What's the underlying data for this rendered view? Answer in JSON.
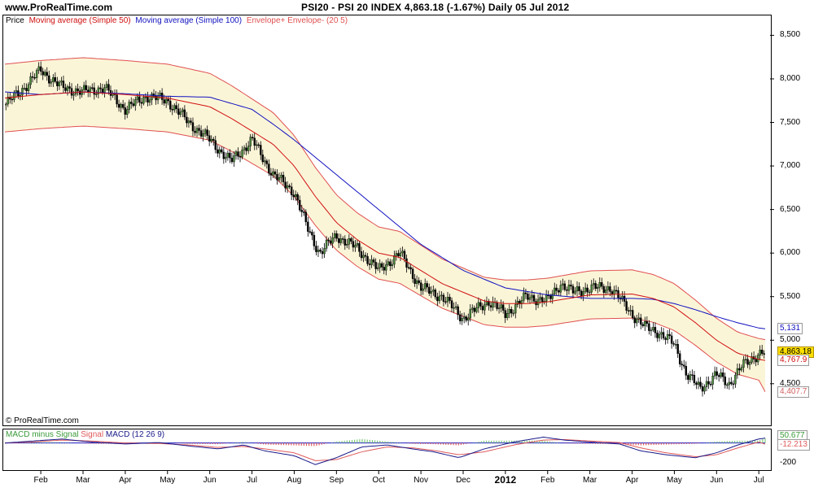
{
  "header": {
    "site": "www.ProRealTime.com",
    "title": "PSI20 - PSI 20 INDEX    4,863.18 (-1.67%)    Daily  05 Jul 2012"
  },
  "legend": {
    "price": "Price",
    "ma50": "Moving average (Simple 50)",
    "ma100": "Moving average (Simple 100)",
    "envelope": "Envelope+ Envelope- (20 5)"
  },
  "copyright": "© ProRealTime.com",
  "indicator": {
    "legend_macd_minus": "MACD minus Signal",
    "legend_signal": "Signal",
    "legend_macd": "MACD (12 26 9)",
    "ticks": [
      {
        "label": "-200",
        "value": -200
      }
    ],
    "value_tags": [
      "50.677",
      "-12.213"
    ]
  },
  "colors": {
    "price_up": "#4a8a3a",
    "price_down": "#000000",
    "ma50": "#d01010",
    "ma100": "#1010c0",
    "envelope_line": "#e05050",
    "envelope_fill": "#fbf5d8",
    "macd_hist": "#7ec87e",
    "macd_line": "#1a1a8a",
    "signal_line": "#e05a5a"
  },
  "chart_data": {
    "type": "line",
    "title": "PSI20 - PSI 20 INDEX",
    "ylim": [
      4050,
      8700
    ],
    "y_ticks": [
      8500,
      8000,
      7500,
      7000,
      6500,
      6000,
      5500,
      5000,
      4500
    ],
    "y_tick_labels": [
      "8,500",
      "8,000",
      "7,500",
      "7,000",
      "6,500",
      "6,000",
      "5,500",
      "5,000",
      "4,500"
    ],
    "value_tags": [
      {
        "label": "5,131",
        "value": 5131,
        "series": "ma100"
      },
      {
        "label": "4,863.18",
        "value": 4863.18,
        "series": "price"
      },
      {
        "label": "4,767.9",
        "value": 4767.9,
        "series": "ma50"
      },
      {
        "label": "4,407.7",
        "value": 4407.7,
        "series": "envelope_lower"
      }
    ],
    "x_labels": [
      {
        "label": "Feb",
        "month_index": 1
      },
      {
        "label": "Mar",
        "month_index": 2
      },
      {
        "label": "Apr",
        "month_index": 3
      },
      {
        "label": "May",
        "month_index": 4
      },
      {
        "label": "Jun",
        "month_index": 5
      },
      {
        "label": "Jul",
        "month_index": 6
      },
      {
        "label": "Aug",
        "month_index": 7
      },
      {
        "label": "Sep",
        "month_index": 8
      },
      {
        "label": "Oct",
        "month_index": 9
      },
      {
        "label": "Nov",
        "month_index": 10
      },
      {
        "label": "Dec",
        "month_index": 11
      },
      {
        "label": "2012",
        "month_index": 12
      },
      {
        "label": "Feb",
        "month_index": 13
      },
      {
        "label": "Mar",
        "month_index": 14
      },
      {
        "label": "Apr",
        "month_index": 15
      },
      {
        "label": "May",
        "month_index": 16
      },
      {
        "label": "Jun",
        "month_index": 17
      },
      {
        "label": "Jul",
        "month_index": 18
      }
    ],
    "x_range_months": [
      0.15,
      18.15
    ],
    "series": [
      {
        "name": "Price",
        "key": "price",
        "months": [
          0.15,
          0.5,
          1.0,
          1.5,
          2.0,
          2.5,
          3.0,
          3.5,
          4.0,
          4.5,
          5.0,
          5.5,
          6.0,
          6.5,
          7.0,
          7.3,
          7.6,
          8.0,
          8.5,
          9.0,
          9.5,
          10.0,
          10.5,
          11.0,
          11.3,
          11.6,
          12.0,
          12.5,
          13.0,
          13.3,
          13.6,
          14.0,
          14.5,
          15.0,
          15.3,
          15.6,
          16.0,
          16.3,
          16.6,
          17.0,
          17.3,
          17.6,
          18.0,
          18.15
        ],
        "values": [
          7700,
          7850,
          8100,
          7900,
          7850,
          7900,
          7650,
          7800,
          7750,
          7500,
          7300,
          7050,
          7300,
          6900,
          6700,
          6300,
          6000,
          6200,
          6050,
          5800,
          6000,
          5600,
          5500,
          5250,
          5350,
          5450,
          5300,
          5500,
          5450,
          5650,
          5550,
          5600,
          5600,
          5300,
          5150,
          5100,
          4950,
          4600,
          4450,
          4600,
          4500,
          4700,
          4850,
          4863
        ]
      },
      {
        "name": "Moving average (Simple 50)",
        "key": "ma50",
        "months": [
          0.15,
          1.0,
          2.0,
          3.0,
          4.0,
          5.0,
          5.5,
          6.0,
          6.5,
          7.0,
          7.5,
          8.0,
          8.5,
          9.0,
          9.5,
          10.0,
          10.5,
          11.0,
          11.5,
          12.0,
          12.5,
          13.0,
          14.0,
          15.0,
          15.5,
          16.0,
          16.5,
          17.0,
          17.5,
          18.0,
          18.15
        ],
        "values": [
          7780,
          7820,
          7850,
          7820,
          7780,
          7680,
          7550,
          7400,
          7250,
          7000,
          6650,
          6350,
          6150,
          6000,
          5950,
          5800,
          5650,
          5550,
          5450,
          5420,
          5420,
          5440,
          5520,
          5530,
          5480,
          5380,
          5200,
          5000,
          4850,
          4780,
          4768
        ]
      },
      {
        "name": "Moving average (Simple 100)",
        "key": "ma100",
        "months": [
          0.15,
          1.0,
          2.0,
          3.0,
          4.0,
          5.0,
          6.0,
          6.5,
          7.0,
          7.5,
          8.0,
          8.5,
          9.0,
          9.5,
          10.0,
          10.5,
          11.0,
          11.5,
          12.0,
          13.0,
          14.0,
          15.0,
          15.5,
          16.0,
          16.5,
          17.0,
          17.5,
          18.0,
          18.15
        ],
        "values": [
          7850,
          7820,
          7850,
          7830,
          7800,
          7790,
          7650,
          7480,
          7300,
          7100,
          6900,
          6700,
          6500,
          6300,
          6100,
          5950,
          5800,
          5700,
          5600,
          5520,
          5480,
          5480,
          5470,
          5420,
          5350,
          5270,
          5200,
          5140,
          5131
        ]
      },
      {
        "name": "Envelope+",
        "key": "env_upper",
        "months": [
          0.15,
          1.0,
          2.0,
          3.0,
          4.0,
          5.0,
          5.5,
          6.0,
          6.5,
          7.0,
          7.5,
          8.0,
          8.5,
          9.0,
          9.5,
          10.0,
          10.5,
          11.0,
          11.5,
          12.0,
          12.5,
          13.0,
          14.0,
          15.0,
          15.5,
          16.0,
          16.5,
          17.0,
          17.5,
          18.0,
          18.15
        ],
        "values": [
          8169,
          8211,
          8243,
          8211,
          8169,
          8064,
          7928,
          7770,
          7613,
          7350,
          6983,
          6668,
          6458,
          6300,
          6248,
          6090,
          5933,
          5828,
          5723,
          5691,
          5691,
          5712,
          5796,
          5807,
          5754,
          5649,
          5460,
          5250,
          5093,
          5019,
          5006
        ]
      },
      {
        "name": "Envelope-",
        "key": "env_lower",
        "months": [
          0.15,
          1.0,
          2.0,
          3.0,
          4.0,
          5.0,
          5.5,
          6.0,
          6.5,
          7.0,
          7.5,
          8.0,
          8.5,
          9.0,
          9.5,
          10.0,
          10.5,
          11.0,
          11.5,
          12.0,
          12.5,
          13.0,
          14.0,
          15.0,
          15.5,
          16.0,
          16.5,
          17.0,
          17.5,
          18.0,
          18.15
        ],
        "values": [
          7391,
          7429,
          7458,
          7429,
          7391,
          7296,
          7173,
          7030,
          6888,
          6650,
          6318,
          6033,
          5843,
          5700,
          5653,
          5510,
          5368,
          5273,
          5178,
          5149,
          5149,
          5168,
          5244,
          5254,
          5206,
          5111,
          4940,
          4750,
          4608,
          4541,
          4408
        ]
      }
    ],
    "macd": {
      "months": [
        0.15,
        0.8,
        1.5,
        2.2,
        3.0,
        3.8,
        4.5,
        5.2,
        5.8,
        6.3,
        7.0,
        7.5,
        8.0,
        8.6,
        9.2,
        9.8,
        10.3,
        10.9,
        11.5,
        12.2,
        12.9,
        13.4,
        14.0,
        14.7,
        15.2,
        15.8,
        16.5,
        17.0,
        17.5,
        18.0,
        18.15
      ],
      "macd": [
        0,
        20,
        40,
        10,
        -10,
        5,
        -30,
        -60,
        -20,
        -80,
        -130,
        -220,
        -150,
        -40,
        -20,
        -60,
        -90,
        -150,
        -60,
        10,
        60,
        30,
        10,
        -10,
        -80,
        -120,
        -150,
        -100,
        -20,
        40,
        50
      ],
      "signal": [
        0,
        10,
        30,
        20,
        0,
        -5,
        -20,
        -45,
        -35,
        -60,
        -100,
        -180,
        -170,
        -90,
        -40,
        -50,
        -75,
        -120,
        -90,
        -20,
        30,
        35,
        20,
        5,
        -50,
        -100,
        -140,
        -120,
        -50,
        10,
        -12
      ],
      "ylim": [
        -260,
        130
      ]
    }
  }
}
